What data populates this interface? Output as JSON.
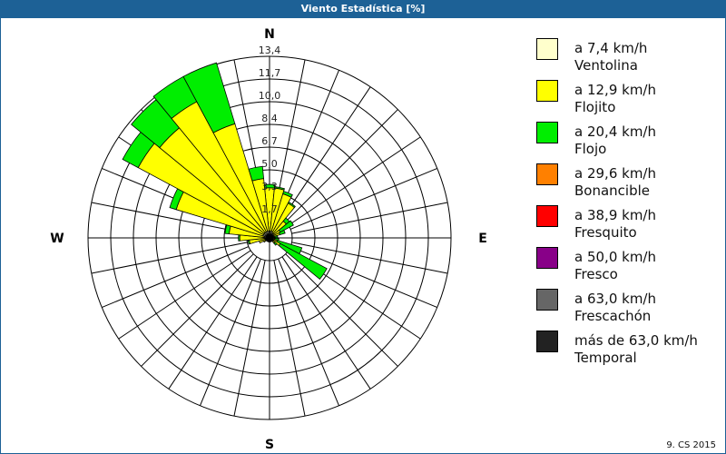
{
  "title": "Viento Estadística [%]",
  "footer": "9. CS 2015",
  "chart_data": {
    "type": "wind-rose",
    "title": "Viento Estadística [%]",
    "unit": "%",
    "compass_labels": [
      "N",
      "E",
      "S",
      "W"
    ],
    "ring_labels": [
      "1,7",
      "3,3",
      "5,0",
      "6,7",
      "8,4",
      "10,0",
      "11,7",
      "13,4"
    ],
    "rmax": 13.4,
    "directions_deg": [
      0,
      11.25,
      22.5,
      33.75,
      45,
      56.25,
      67.5,
      78.75,
      90,
      101.25,
      112.5,
      123.75,
      135,
      146.25,
      157.5,
      168.75,
      180,
      191.25,
      202.5,
      213.75,
      225,
      236.25,
      247.5,
      258.75,
      270,
      281.25,
      292.5,
      303.75,
      315,
      326.25,
      337.5,
      348.75
    ],
    "series": [
      {
        "name": "a 7,4 km/h",
        "label2": "Ventolina",
        "color": "#ffffcc",
        "values": [
          0.5,
          0.5,
          0.5,
          0.4,
          0.4,
          0.3,
          0.3,
          0.2,
          0.2,
          0.2,
          0.2,
          0.3,
          0.2,
          0.2,
          0.2,
          0.2,
          0.2,
          0.2,
          0.2,
          0.2,
          0.2,
          0.2,
          0.3,
          0.3,
          0.4,
          0.4,
          0.5,
          0.5,
          0.5,
          0.5,
          0.5,
          0.5
        ]
      },
      {
        "name": "a 12,9 km/h",
        "label2": "Flojito",
        "color": "#ffff00",
        "values": [
          3.2,
          3.2,
          2.9,
          2.5,
          1.2,
          0.6,
          0.5,
          0.2,
          0.2,
          0.2,
          0.4,
          0.6,
          0.3,
          0.1,
          0.1,
          0.1,
          0.1,
          0.1,
          0.1,
          0.1,
          0.1,
          0.3,
          0.5,
          1.2,
          1.8,
          2.6,
          6.7,
          10.5,
          10.0,
          10.9,
          8.3,
          3.9
        ]
      },
      {
        "name": "a 20,4 km/h",
        "label2": "Flojo",
        "color": "#00ee00",
        "values": [
          0.25,
          0.1,
          0.2,
          0.1,
          0.3,
          1.1,
          0.4,
          0.2,
          0.2,
          0.3,
          1.9,
          3.9,
          0.2,
          0,
          0,
          0,
          0,
          0,
          0,
          0,
          0,
          0,
          0,
          0.1,
          0.1,
          0.3,
          0.5,
          1.3,
          2.7,
          2.1,
          4.7,
          0.9
        ]
      },
      {
        "name": "a 29,6 km/h",
        "label2": "Bonancible",
        "color": "#ff8000",
        "values": []
      },
      {
        "name": "a 38,9 km/h",
        "label2": "Fresquito",
        "color": "#ff0000",
        "values": []
      },
      {
        "name": "a 50,0 km/h",
        "label2": "Fresco",
        "color": "#880088",
        "values": []
      },
      {
        "name": "a 63,0 km/h",
        "label2": "Frescachón",
        "color": "#666666",
        "values": []
      },
      {
        "name": "más de 63,0 km/h",
        "label2": "Temporal",
        "color": "#222222",
        "values": []
      }
    ],
    "legend_position": "right"
  }
}
